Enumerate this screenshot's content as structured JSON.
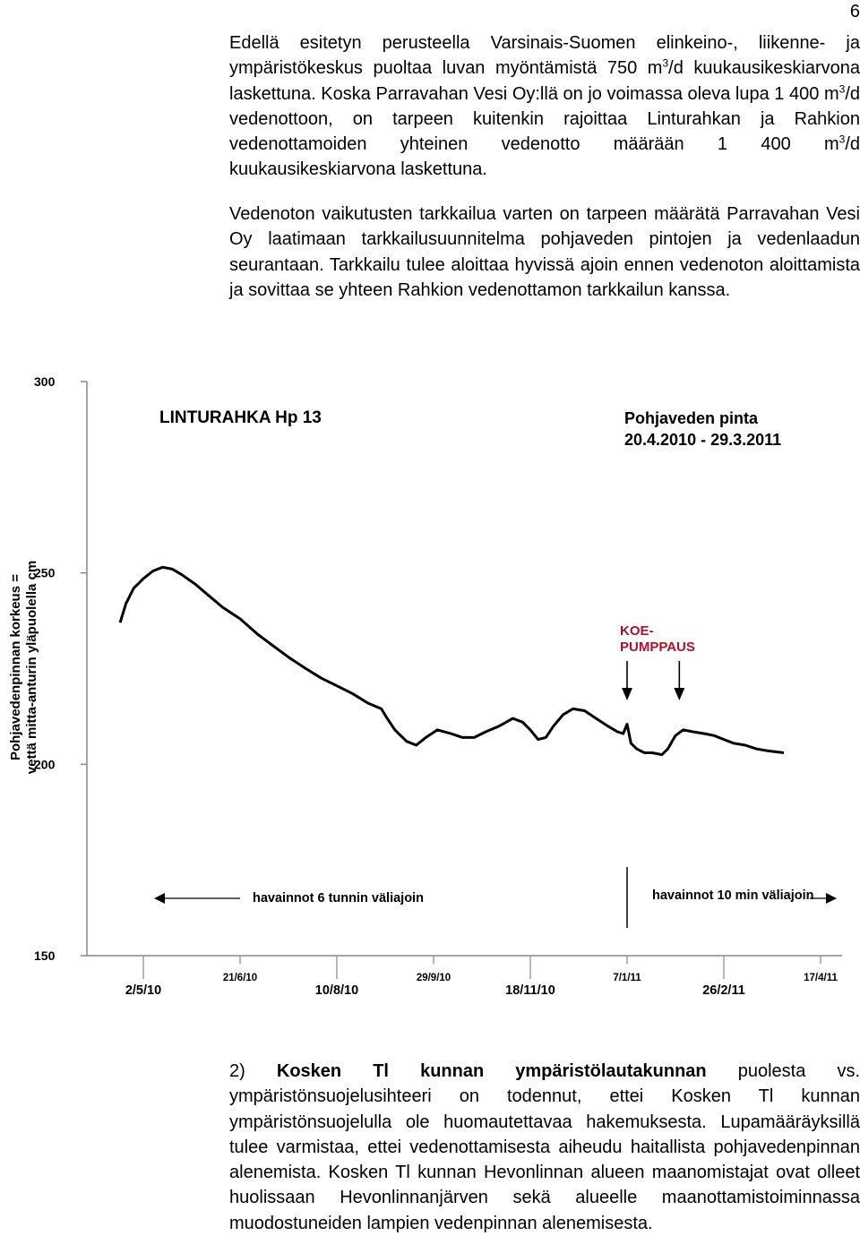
{
  "page": {
    "number": "6"
  },
  "paragraph1": {
    "a": "Edellä esitetyn perusteella Varsinais-Suomen elinkeino-, liikenne- ja ympäristökeskus puoltaa luvan myöntämistä 750 m",
    "sup1": "3",
    "b": "/d kuukausikeskiarvona laskettuna. Koska Parravahan Vesi Oy:llä on jo voimassa oleva lupa 1 400 m",
    "sup2": "3",
    "c": "/d vedenottoon, on tarpeen kuitenkin rajoittaa Linturahkan ja Rahkion vedenottamoiden yhteinen vedenotto määrään 1 400 m",
    "sup3": "3",
    "d": "/d kuukausikeskiarvona laskettuna."
  },
  "paragraph2": {
    "text": "Vedenoton vaikutusten tarkkailua varten on tarpeen määrätä Parravahan Vesi Oy laatimaan tarkkailusuunnitelma pohjaveden pintojen ja vedenlaadun seurantaan. Tarkkailu tulee aloittaa hyvissä ajoin ennen vedenoton aloittamista ja sovittaa se yhteen Rahkion vedenottamon tarkkailun kanssa."
  },
  "paragraph3": {
    "prefix": "2) ",
    "bold": "Kosken Tl kunnan ympäristölautakunnan",
    "rest": " puolesta vs. ympäristönsuojelusihteeri on todennut, ettei Kosken Tl kunnan ympäristönsuojelulla ole huomautettavaa hakemuksesta. Lupamääräyksillä tulee varmistaa, ettei vedenottamisesta aiheudu haitallista pohjavedenpinnan alenemista. Kosken Tl kunnan Hevonlinnan alueen maanomistajat ovat olleet huolissaan Hevonlinnanjärven sekä alueelle maanottamistoiminnassa muodostuneiden lampien vedenpinnan alenemisesta."
  },
  "chart_data": {
    "type": "line",
    "title": "LINTURAHKA Hp 13",
    "subtitle_line1": "Pohjaveden pinta",
    "subtitle_line2": "20.4.2010 - 29.3.2011",
    "ylabel_line1": "Pohjavedenpinnan korkeus =",
    "ylabel_line2": "vettä mitta-anturin yläpuolella cm",
    "xlabel": "",
    "ylim": [
      150,
      300
    ],
    "yticks": [
      {
        "value": 150,
        "label": "150"
      },
      {
        "value": 200,
        "label": "200"
      },
      {
        "value": 250,
        "label": "250"
      },
      {
        "value": 300,
        "label": "300"
      }
    ],
    "xticks_lower": [
      {
        "date": "2010-05-02",
        "label": "2/5/10"
      },
      {
        "date": "2010-08-10",
        "label": "10/8/10"
      },
      {
        "date": "2010-11-18",
        "label": "18/11/10"
      },
      {
        "date": "2011-02-26",
        "label": "26/2/11"
      }
    ],
    "xticks_upper": [
      {
        "date": "2010-06-21",
        "label": "21/6/10"
      },
      {
        "date": "2010-09-29",
        "label": "29/9/10"
      },
      {
        "date": "2011-01-07",
        "label": "7/1/11"
      },
      {
        "date": "2011-04-17",
        "label": "17/4/11"
      }
    ],
    "series": [
      {
        "color": "#000000",
        "points": [
          [
            "2010-04-20",
            237
          ],
          [
            "2010-04-23",
            242
          ],
          [
            "2010-04-27",
            246
          ],
          [
            "2010-05-02",
            248.5
          ],
          [
            "2010-05-07",
            250.5
          ],
          [
            "2010-05-12",
            251.5
          ],
          [
            "2010-05-17",
            251
          ],
          [
            "2010-05-22",
            249.5
          ],
          [
            "2010-05-29",
            247
          ],
          [
            "2010-06-05",
            244
          ],
          [
            "2010-06-12",
            241
          ],
          [
            "2010-06-21",
            238
          ],
          [
            "2010-06-30",
            234
          ],
          [
            "2010-07-08",
            231
          ],
          [
            "2010-07-16",
            228
          ],
          [
            "2010-07-25",
            225
          ],
          [
            "2010-08-02",
            222.5
          ],
          [
            "2010-08-10",
            220.5
          ],
          [
            "2010-08-18",
            218.5
          ],
          [
            "2010-08-26",
            216
          ],
          [
            "2010-09-02",
            214.5
          ],
          [
            "2010-09-05",
            212
          ],
          [
            "2010-09-09",
            209
          ],
          [
            "2010-09-15",
            206
          ],
          [
            "2010-09-20",
            205
          ],
          [
            "2010-09-25",
            207
          ],
          [
            "2010-10-01",
            209
          ],
          [
            "2010-10-08",
            208
          ],
          [
            "2010-10-14",
            207
          ],
          [
            "2010-10-20",
            207
          ],
          [
            "2010-10-26",
            208.5
          ],
          [
            "2010-11-02",
            210
          ],
          [
            "2010-11-09",
            212
          ],
          [
            "2010-11-14",
            211
          ],
          [
            "2010-11-18",
            209
          ],
          [
            "2010-11-22",
            206.5
          ],
          [
            "2010-11-26",
            207
          ],
          [
            "2010-11-30",
            210
          ],
          [
            "2010-12-05",
            213
          ],
          [
            "2010-12-10",
            214.5
          ],
          [
            "2010-12-16",
            214
          ],
          [
            "2010-12-22",
            212
          ],
          [
            "2010-12-28",
            210
          ],
          [
            "2011-01-02",
            208.5
          ],
          [
            "2011-01-05",
            208
          ],
          [
            "2011-01-07",
            210.5
          ],
          [
            "2011-01-09",
            205.5
          ],
          [
            "2011-01-12",
            204
          ],
          [
            "2011-01-16",
            203
          ],
          [
            "2011-01-20",
            203
          ],
          [
            "2011-01-25",
            202.5
          ],
          [
            "2011-01-28",
            204
          ],
          [
            "2011-02-01",
            207.5
          ],
          [
            "2011-02-05",
            209
          ],
          [
            "2011-02-10",
            208.5
          ],
          [
            "2011-02-16",
            208
          ],
          [
            "2011-02-21",
            207.5
          ],
          [
            "2011-02-26",
            206.5
          ],
          [
            "2011-03-03",
            205.5
          ],
          [
            "2011-03-09",
            205
          ],
          [
            "2011-03-15",
            204
          ],
          [
            "2011-03-21",
            203.5
          ],
          [
            "2011-03-29",
            203
          ]
        ]
      }
    ],
    "annotations": {
      "koe_line1": "KOE-",
      "koe_line2": "PUMPPAUS",
      "koe_color": "#b0102a",
      "pump_arrows": [
        "2011-01-07",
        "2011-02-03"
      ],
      "divider_date": "2011-01-07",
      "left_note": "havainnot 6 tunnin väliajoin",
      "right_note": "havainnot 10 min väliajoin"
    },
    "grid": false,
    "legend": "none"
  }
}
